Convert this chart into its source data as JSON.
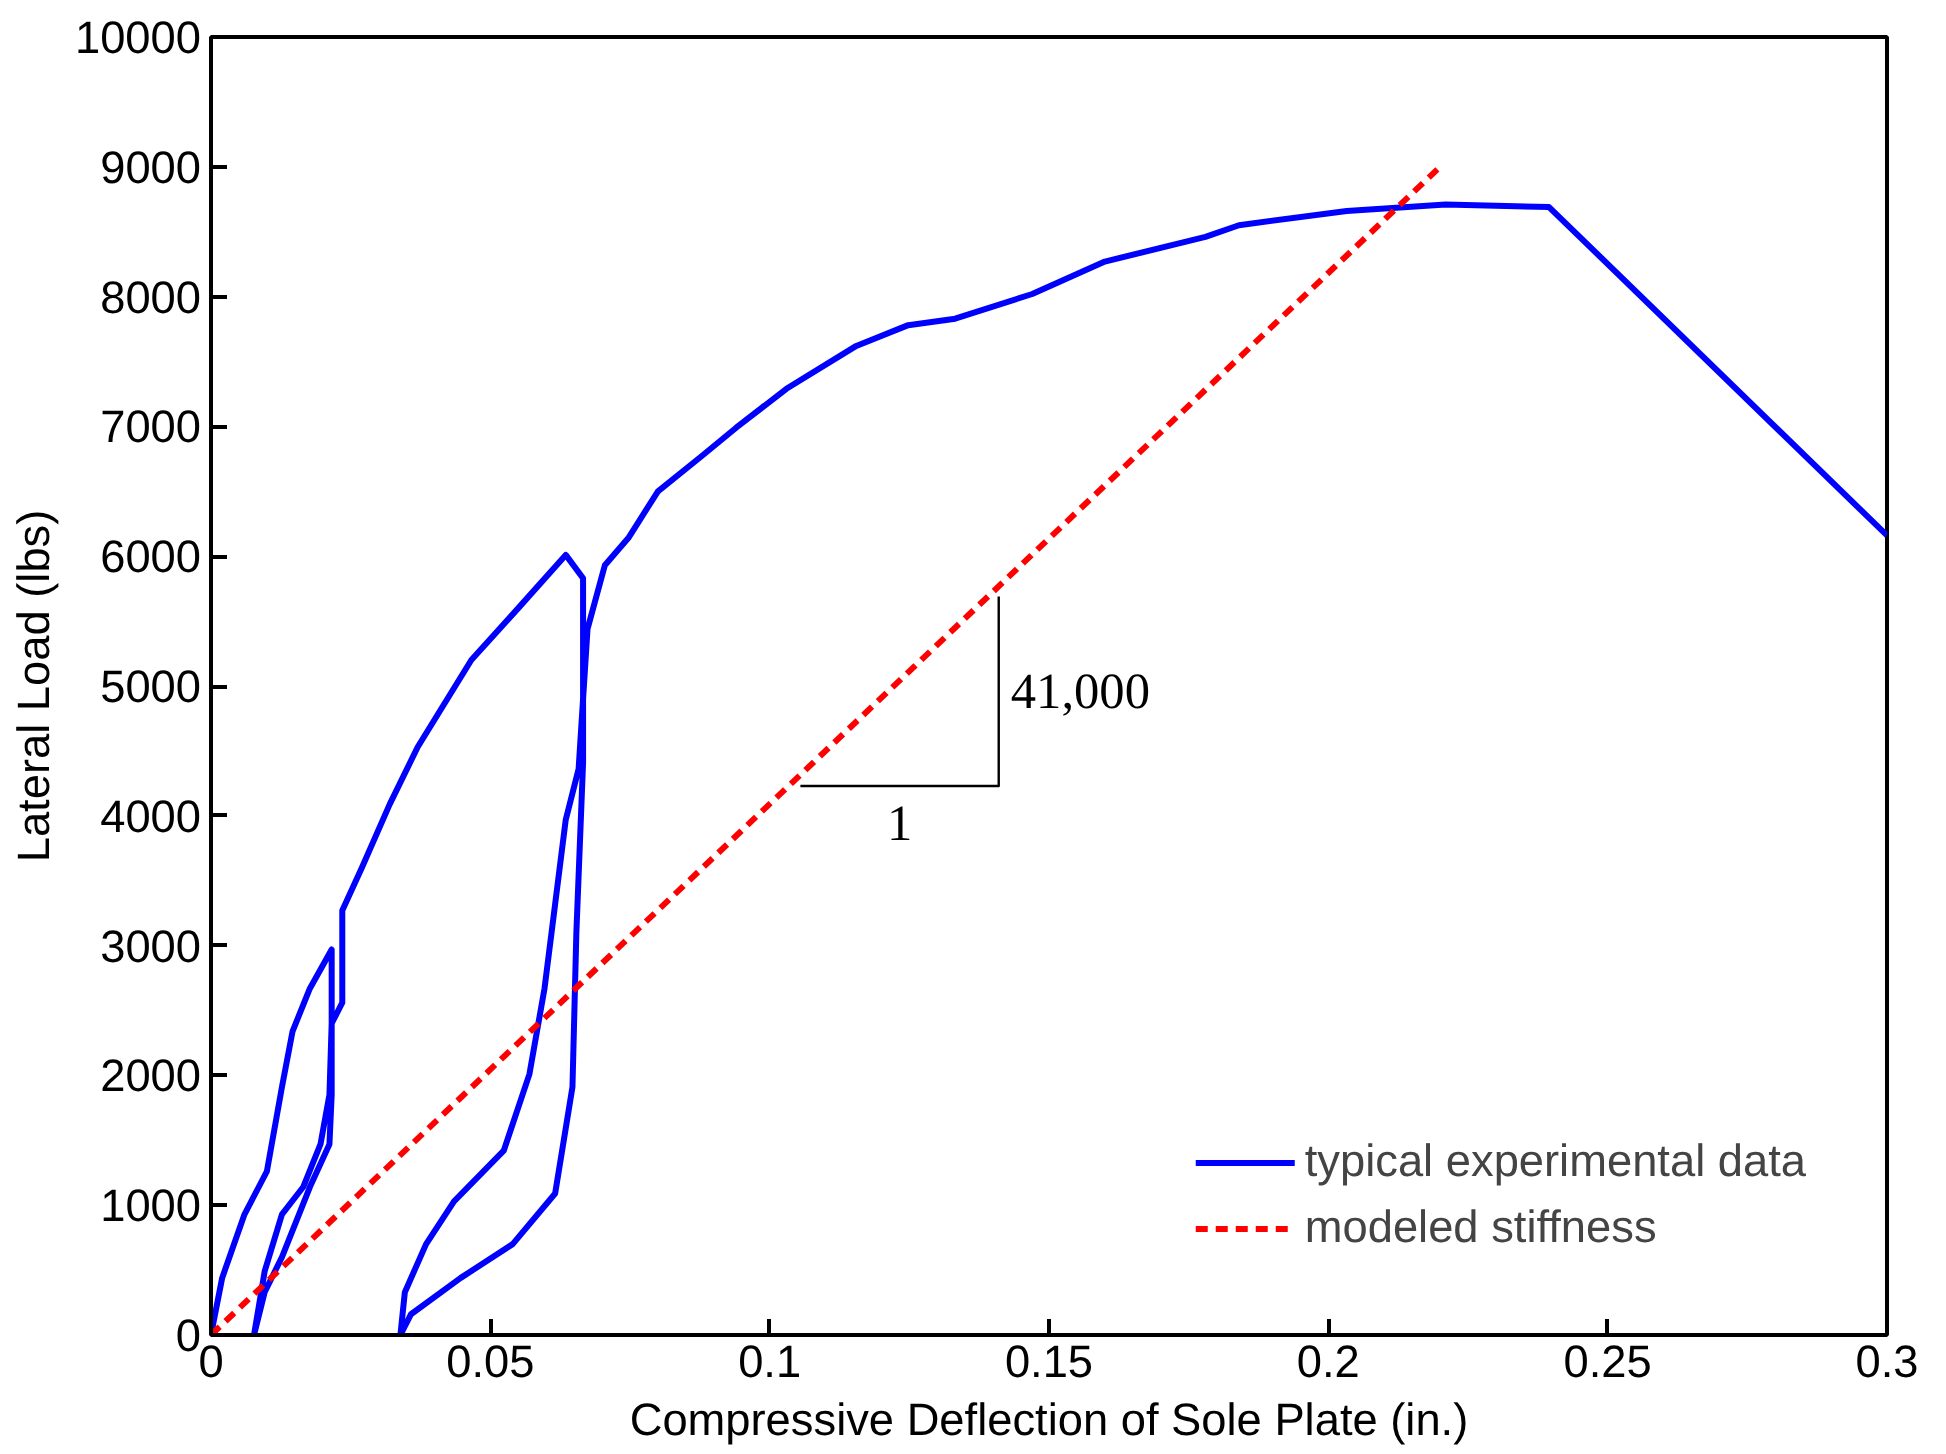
{
  "chart_data": {
    "type": "line",
    "xlabel": "Compressive Deflection of Sole Plate (in.)",
    "ylabel": "Lateral Load (lbs)",
    "xlim": [
      0,
      0.3
    ],
    "ylim": [
      0,
      10000
    ],
    "xticks": [
      0,
      0.05,
      0.1,
      0.15,
      0.2,
      0.25,
      0.3
    ],
    "yticks": [
      0,
      1000,
      2000,
      3000,
      4000,
      5000,
      6000,
      7000,
      8000,
      9000,
      10000
    ],
    "grid": false,
    "legend": "bottom right",
    "series": [
      {
        "name": "typical experimental data",
        "color": "#0000ff",
        "line_style": "solid",
        "x": [
          0,
          0.002,
          0.006,
          0.01,
          0.0127,
          0.0146,
          0.0177,
          0.0216,
          0.0216,
          0.0212,
          0.0177,
          0.0127,
          0.0096,
          0.0077,
          0.0096,
          0.0127,
          0.0165,
          0.0196,
          0.0212,
          0.0216,
          0.0235,
          0.0235,
          0.027,
          0.032,
          0.037,
          0.0466,
          0.055,
          0.0635,
          0.0666,
          0.0666,
          0.0654,
          0.0647,
          0.0616,
          0.054,
          0.0447,
          0.0358,
          0.0339,
          0.0347,
          0.0385,
          0.0435,
          0.0524,
          0.057,
          0.0597,
          0.0616,
          0.0635,
          0.0658,
          0.0674,
          0.0705,
          0.0747,
          0.08,
          0.0878,
          0.094,
          0.103,
          0.1155,
          0.1248,
          0.1332,
          0.147,
          0.16,
          0.178,
          0.184,
          0.2033,
          0.221,
          0.2395,
          0.3
        ],
        "values": [
          0,
          440,
          930,
          1260,
          1910,
          2340,
          2670,
          2970,
          1850,
          1470,
          1140,
          600,
          330,
          0,
          490,
          930,
          1140,
          1470,
          1850,
          2400,
          2560,
          3270,
          3600,
          4090,
          4530,
          5200,
          5600,
          6010,
          5830,
          4410,
          3100,
          1910,
          1090,
          700,
          440,
          160,
          0,
          330,
          700,
          1030,
          1420,
          2010,
          2670,
          3320,
          3970,
          4360,
          5440,
          5930,
          6140,
          6500,
          6770,
          6990,
          7290,
          7620,
          7780,
          7830,
          8020,
          8270,
          8460,
          8550,
          8660,
          8710,
          8690,
          6160
        ]
      },
      {
        "name": "modeled stiffness",
        "color": "#ff0000",
        "line_style": "dashed",
        "x": [
          0,
          0.22
        ],
        "values": [
          0,
          9000
        ]
      },
      {
        "color": "#000000",
        "line_style": "solid",
        "x": [
          0.1055,
          0.141,
          0.141
        ],
        "values": [
          4230,
          4230,
          5690
        ]
      }
    ],
    "annotations": [
      "41,000",
      "1"
    ]
  }
}
